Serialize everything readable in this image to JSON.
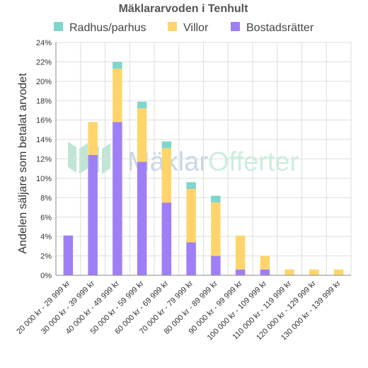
{
  "chart_data": {
    "type": "bar",
    "stacked": true,
    "title": "Mäklararvoden i Tenhult",
    "ylabel": "Andelen säljare som betalat arvodet",
    "xlabel": "",
    "ylim": [
      0,
      24
    ],
    "yticks": [
      0,
      2,
      4,
      6,
      8,
      10,
      12,
      14,
      16,
      18,
      20,
      22,
      24
    ],
    "ytick_suffix": "%",
    "grid": true,
    "legend_position": "top",
    "categories": [
      "20 000 kr - 29 999 kr",
      "30 000 kr - 39 999 kr",
      "40 000 kr - 49 999 kr",
      "50 000 kr - 59 999 kr",
      "60 000 kr - 69 999 kr",
      "70 000 kr - 79 999 kr",
      "80 000 kr - 89 999 kr",
      "90 000 kr - 99 999 kr",
      "100 000 kr - 109 999 kr",
      "110 000 kr - 119 999 kr",
      "120 000 kr - 129 999 kr",
      "130 000 kr - 139 999 kr"
    ],
    "series": [
      {
        "name": "Bostadsrätter",
        "color": "#9f7ff5",
        "values": [
          4.1,
          12.4,
          15.8,
          11.7,
          7.5,
          3.4,
          2.0,
          0.6,
          0.6,
          0,
          0,
          0
        ]
      },
      {
        "name": "Villor",
        "color": "#ffd56b",
        "values": [
          0,
          3.4,
          5.5,
          5.5,
          5.6,
          5.5,
          5.5,
          3.5,
          1.4,
          0.6,
          0.6,
          0.6
        ]
      },
      {
        "name": "Radhus/parhus",
        "color": "#7fd6cc",
        "values": [
          0,
          0,
          0.7,
          0.7,
          0.7,
          0.7,
          0.7,
          0,
          0,
          0,
          0,
          0
        ]
      }
    ],
    "legend_order": [
      "Radhus/parhus",
      "Villor",
      "Bostadsrätter"
    ]
  },
  "watermark": {
    "text_part1": "Mäklar",
    "text_part2": "Offerter",
    "color1": "#c6d7e6",
    "color2": "#cdeedd",
    "logo_color": "#bfe6d4"
  }
}
